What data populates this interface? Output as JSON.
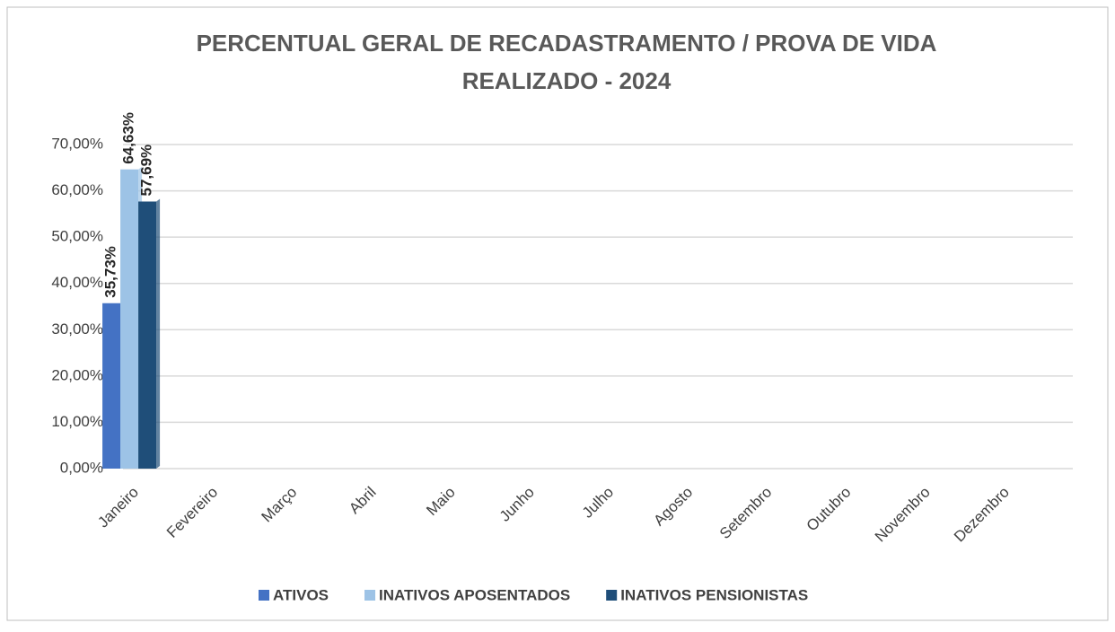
{
  "chart_data": {
    "type": "bar",
    "title": [
      "PERCENTUAL GERAL DE RECADASTRAMENTO / PROVA DE VIDA",
      "REALIZADO - 2024"
    ],
    "categories": [
      "Janeiro",
      "Fevereiro",
      "Março",
      "Abril",
      "Maio",
      "Junho",
      "Julho",
      "Agosto",
      "Setembro",
      "Outubro",
      "Novembro",
      "Dezembro"
    ],
    "series": [
      {
        "name": "ATIVOS",
        "color": "#4472c4",
        "values": [
          35.73,
          null,
          null,
          null,
          null,
          null,
          null,
          null,
          null,
          null,
          null,
          null
        ],
        "value_labels": [
          "35,73%",
          null,
          null,
          null,
          null,
          null,
          null,
          null,
          null,
          null,
          null,
          null
        ]
      },
      {
        "name": "INATIVOS APOSENTADOS",
        "color": "#9dc3e6",
        "values": [
          64.63,
          null,
          null,
          null,
          null,
          null,
          null,
          null,
          null,
          null,
          null,
          null
        ],
        "value_labels": [
          "64,63%",
          null,
          null,
          null,
          null,
          null,
          null,
          null,
          null,
          null,
          null,
          null
        ]
      },
      {
        "name": "INATIVOS PENSIONISTAS",
        "color": "#1f4e79",
        "values": [
          57.69,
          null,
          null,
          null,
          null,
          null,
          null,
          null,
          null,
          null,
          null,
          null
        ],
        "value_labels": [
          "57,69%",
          null,
          null,
          null,
          null,
          null,
          null,
          null,
          null,
          null,
          null,
          null
        ]
      }
    ],
    "ylim": [
      0,
      70
    ],
    "yticks": [
      {
        "value": 0,
        "label": "0,00%"
      },
      {
        "value": 10,
        "label": "10,00%"
      },
      {
        "value": 20,
        "label": "20,00%"
      },
      {
        "value": 30,
        "label": "30,00%"
      },
      {
        "value": 40,
        "label": "40,00%"
      },
      {
        "value": 50,
        "label": "50,00%"
      },
      {
        "value": 60,
        "label": "60,00%"
      },
      {
        "value": 70,
        "label": "70,00%"
      }
    ],
    "grid": true,
    "legend": "bottom"
  }
}
